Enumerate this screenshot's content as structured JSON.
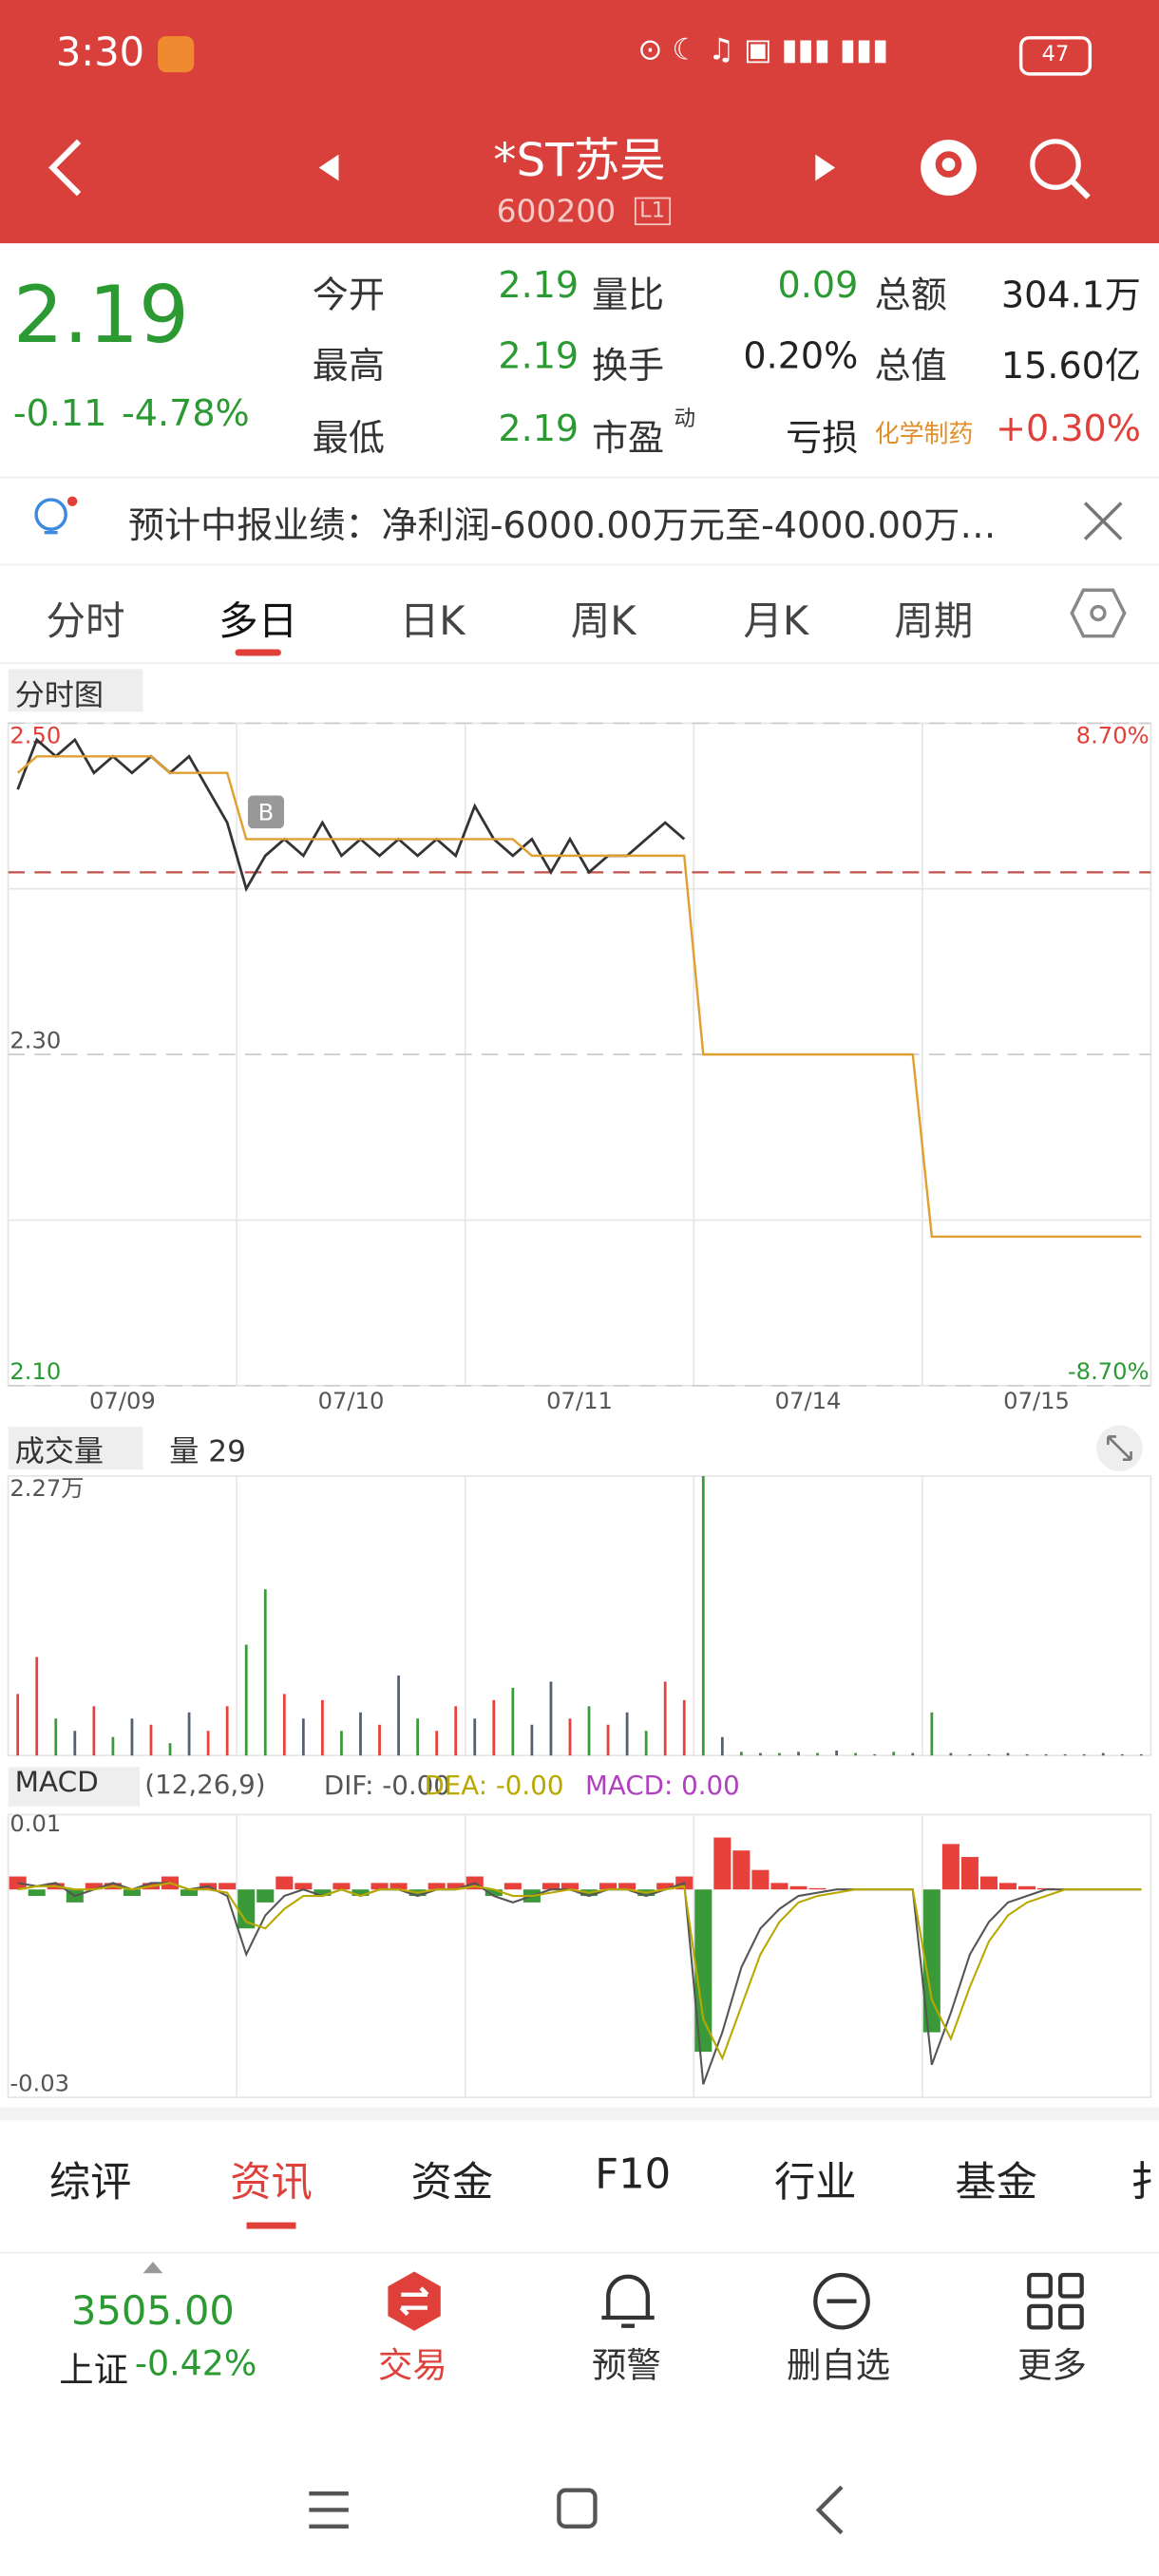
{
  "status_bar": {
    "time": "3:30",
    "battery": "47"
  },
  "header": {
    "title": "*ST苏吴",
    "code": "600200",
    "level": "L1"
  },
  "quote": {
    "price": "2.19",
    "change": "-0.11",
    "change_pct": "-4.78%",
    "open": {
      "label": "今开",
      "value": "2.19"
    },
    "high": {
      "label": "最高",
      "value": "2.19"
    },
    "low": {
      "label": "最低",
      "value": "2.19"
    },
    "volume_ratio": {
      "label": "量比",
      "value": "0.09"
    },
    "turnover": {
      "label": "换手",
      "value": "0.20%"
    },
    "pe": {
      "label": "市盈",
      "sup": "动",
      "value": "亏损"
    },
    "amount": {
      "label": "总额",
      "value": "304.1万"
    },
    "market_cap": {
      "label": "总值",
      "value": "15.60亿"
    },
    "industry": {
      "label": "化学制药",
      "value": "+0.30%"
    }
  },
  "notice": "预计中报业绩：净利润-6000.00万元至-4000.00万…",
  "period_tabs": [
    "分时",
    "多日",
    "日K",
    "周K",
    "月K",
    "周期"
  ],
  "chart_data": [
    {
      "type": "line",
      "title": "分时图",
      "x_labels": [
        "07/09",
        "07/10",
        "07/11",
        "07/14",
        "07/15"
      ],
      "series": [
        {
          "color": "#333333",
          "values": [
            2.46,
            2.49,
            2.48,
            2.49,
            2.47,
            2.48,
            2.47,
            2.48,
            2.47,
            2.48,
            2.46,
            2.44,
            2.4,
            2.42,
            2.43,
            2.42,
            2.44,
            2.42,
            2.43,
            2.42,
            2.43,
            2.42,
            2.43,
            2.42,
            2.45,
            2.43,
            2.42,
            2.43,
            2.41,
            2.43,
            2.41,
            2.42,
            2.42,
            2.43,
            2.44,
            2.43,
            null,
            null,
            null,
            null,
            null,
            null,
            null,
            null,
            null,
            null,
            null,
            null,
            null,
            null,
            null,
            null,
            null,
            null,
            null,
            null,
            null,
            null,
            null,
            null
          ]
        },
        {
          "color": "#e0a030",
          "values": [
            2.47,
            2.48,
            2.48,
            2.48,
            2.48,
            2.48,
            2.48,
            2.48,
            2.47,
            2.47,
            2.47,
            2.47,
            2.43,
            2.43,
            2.43,
            2.43,
            2.43,
            2.43,
            2.43,
            2.43,
            2.43,
            2.43,
            2.43,
            2.43,
            2.43,
            2.43,
            2.43,
            2.42,
            2.42,
            2.42,
            2.42,
            2.42,
            2.42,
            2.42,
            2.42,
            2.42,
            2.3,
            2.3,
            2.3,
            2.3,
            2.3,
            2.3,
            2.3,
            2.3,
            2.3,
            2.3,
            2.3,
            2.3,
            2.19,
            2.19,
            2.19,
            2.19,
            2.19,
            2.19,
            2.19,
            2.19,
            2.19,
            2.19,
            2.19,
            2.19
          ]
        }
      ],
      "ylim": [
        2.1,
        2.5
      ],
      "yticks": [
        {
          "value": 2.5,
          "label": "2.50"
        },
        {
          "value": 2.3,
          "label": "2.30"
        },
        {
          "value": 2.1,
          "label": "2.10"
        }
      ],
      "grid_values": [
        2.4,
        2.2
      ],
      "y2lim": [
        -8.7,
        8.7
      ],
      "y2ticks": [
        {
          "value": 8.7,
          "label": "8.70%"
        },
        {
          "value": -8.7,
          "label": "-8.70%"
        }
      ],
      "reference_line": 2.41,
      "marker": "B"
    },
    {
      "type": "bar",
      "title": "成交量",
      "volume_label": "量 29",
      "values": [
        5000,
        8000,
        3000,
        2000,
        4000,
        1500,
        3000,
        2500,
        1000,
        3500,
        2000,
        4000,
        9000,
        13500,
        5000,
        3000,
        4500,
        2000,
        3500,
        2500,
        6500,
        3000,
        2000,
        4000,
        3000,
        4500,
        5500,
        2500,
        6000,
        3000,
        4000,
        2500,
        3500,
        2000,
        6000,
        4500,
        22700,
        1500,
        300,
        200,
        200,
        300,
        200,
        400,
        200,
        100,
        300,
        200,
        3500,
        200,
        100,
        100,
        200,
        100,
        100,
        100,
        100,
        200,
        100,
        100
      ],
      "color_index": [
        0,
        0,
        1,
        2,
        0,
        1,
        2,
        0,
        1,
        2,
        0,
        0,
        1,
        1,
        0,
        2,
        0,
        1,
        2,
        0,
        2,
        1,
        0,
        0,
        2,
        0,
        1,
        2,
        2,
        0,
        1,
        0,
        2,
        1,
        0,
        0,
        1,
        2,
        1,
        2,
        1,
        2,
        1,
        2,
        1,
        2,
        1,
        2,
        1,
        2,
        2,
        2,
        2,
        2,
        2,
        2,
        2,
        2,
        2,
        2
      ],
      "palette": [
        "#e8403a",
        "#3a9a3a",
        "#556070"
      ],
      "ylim": [
        0,
        22700
      ],
      "yticks": [
        {
          "value": 22700,
          "label": "2.27万"
        }
      ]
    },
    {
      "type": "macd",
      "title": "MACD",
      "params": "(12,26,9)",
      "legend": [
        "DIF: -0.00",
        "DEA: -0.00",
        "MACD: 0.00"
      ],
      "legend_colors": [
        "#555555",
        "#b8a800",
        "#b040c0"
      ],
      "histogram": [
        0.002,
        -0.001,
        0.001,
        -0.002,
        0.001,
        0.001,
        -0.001,
        0.001,
        0.002,
        -0.001,
        0.001,
        0.001,
        -0.006,
        -0.002,
        0.002,
        0.001,
        -0.001,
        0.001,
        -0.001,
        0.001,
        0.001,
        -0.001,
        0.001,
        0.001,
        0.002,
        -0.001,
        0.001,
        -0.002,
        0.001,
        0.001,
        -0.001,
        0.001,
        0.001,
        -0.001,
        0.001,
        0.002,
        -0.025,
        0.008,
        0.006,
        0.003,
        0.001,
        0.0005,
        0.0002,
        0,
        0,
        0,
        0,
        0,
        -0.022,
        0.007,
        0.005,
        0.002,
        0.001,
        0.0005,
        0.0002,
        0,
        0,
        0,
        0,
        0
      ],
      "up_color": "#e8403a",
      "down_color": "#3a9a3a",
      "series": [
        {
          "color": "#555555",
          "values": [
            0.001,
            0.0005,
            0.001,
            -0.001,
            0,
            0.001,
            0,
            0.001,
            0.001,
            0,
            0.0005,
            -0.001,
            -0.01,
            -0.004,
            -0.001,
            0,
            -0.001,
            0,
            -0.001,
            0,
            0,
            -0.001,
            0,
            0,
            0.001,
            -0.001,
            -0.002,
            -0.001,
            0,
            0,
            -0.001,
            0,
            0,
            -0.001,
            0,
            0.001,
            -0.03,
            -0.022,
            -0.012,
            -0.006,
            -0.003,
            -0.001,
            -0.0005,
            0,
            0,
            0,
            0,
            0,
            -0.027,
            -0.019,
            -0.01,
            -0.005,
            -0.002,
            -0.001,
            0,
            0,
            0,
            0,
            0,
            0
          ]
        },
        {
          "color": "#b8a800",
          "values": [
            0,
            0.0005,
            0.0005,
            0,
            0,
            0.0005,
            0,
            0.0005,
            0.001,
            0,
            0,
            -0.0005,
            -0.005,
            -0.006,
            -0.003,
            -0.001,
            -0.001,
            0,
            -0.001,
            0,
            0,
            -0.0005,
            0,
            0,
            0.0005,
            0,
            -0.001,
            -0.001,
            -0.0005,
            0,
            -0.0005,
            0,
            0,
            -0.0005,
            0,
            0.0005,
            -0.02,
            -0.026,
            -0.018,
            -0.01,
            -0.005,
            -0.002,
            -0.001,
            -0.0005,
            0,
            0,
            0,
            0,
            -0.017,
            -0.023,
            -0.015,
            -0.008,
            -0.004,
            -0.002,
            -0.001,
            0,
            0,
            0,
            0,
            0
          ]
        }
      ],
      "ylim": [
        -0.03,
        0.01
      ],
      "yticks": [
        0.01,
        -0.03
      ]
    }
  ],
  "info_tabs": [
    "综评",
    "资讯",
    "资金",
    "F10",
    "行业",
    "基金",
    "扌"
  ],
  "bottom_nav": {
    "index_value": "3505.00",
    "index_name": "上证",
    "index_change": "-0.42%",
    "items": [
      "交易",
      "预警",
      "删自选",
      "更多"
    ]
  }
}
